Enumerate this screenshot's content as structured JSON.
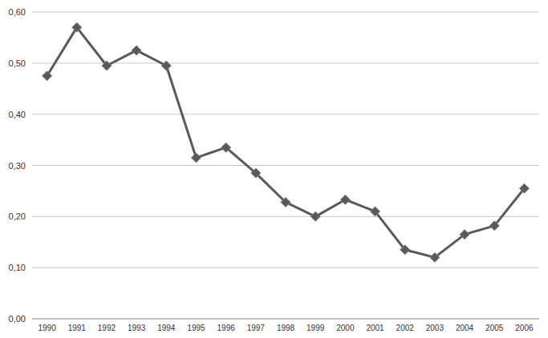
{
  "chart_data": {
    "type": "line",
    "categories": [
      "1990",
      "1991",
      "1992",
      "1993",
      "1994",
      "1995",
      "1996",
      "1997",
      "1998",
      "1999",
      "2000",
      "2001",
      "2002",
      "2003",
      "2004",
      "2005",
      "2006"
    ],
    "values": [
      0.475,
      0.57,
      0.495,
      0.525,
      0.495,
      0.315,
      0.335,
      0.285,
      0.228,
      0.2,
      0.233,
      0.21,
      0.135,
      0.12,
      0.165,
      0.182,
      0.255
    ],
    "color": "#595959",
    "marker": "diamond",
    "ylim": [
      0,
      0.6
    ],
    "yticks": [
      {
        "value": 0,
        "label": "0,00"
      },
      {
        "value": 0.1,
        "label": "0,10"
      },
      {
        "value": 0.2,
        "label": "0,20"
      },
      {
        "value": 0.3,
        "label": "0,30"
      },
      {
        "value": 0.4,
        "label": "0,40"
      },
      {
        "value": 0.5,
        "label": "0,50"
      },
      {
        "value": 0.6,
        "label": "0,60"
      }
    ],
    "grid": true
  }
}
